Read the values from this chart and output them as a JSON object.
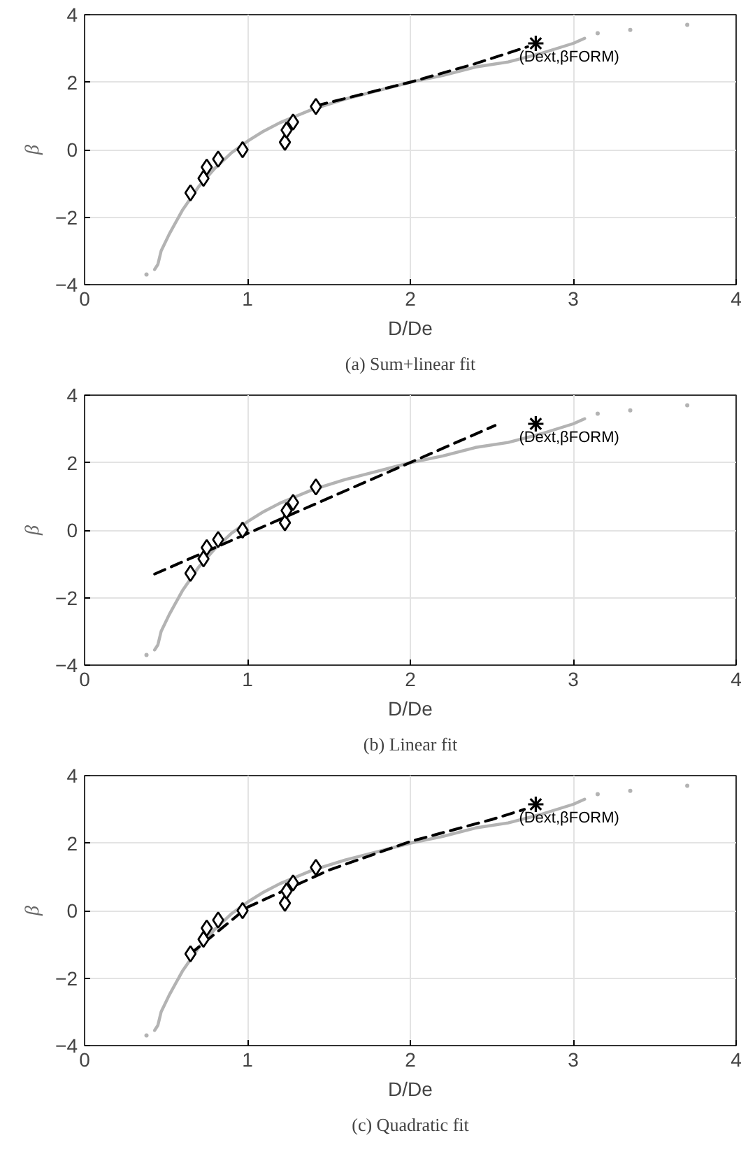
{
  "chart_data": [
    {
      "type": "line",
      "title": "(a) Sum+linear fit",
      "xlabel": "D/De",
      "ylabel": "β",
      "xlim": [
        0,
        4
      ],
      "ylim": [
        -4,
        4
      ],
      "xticks": [
        0,
        1,
        2,
        3,
        4
      ],
      "yticks": [
        -4,
        -2,
        0,
        2,
        4
      ],
      "grid": true,
      "annotations": [
        "(Dext,βFORM)"
      ],
      "series": [
        {
          "color": "#b3b3b3",
          "marker": "none",
          "line_style": "solid",
          "x": [
            0.43,
            0.45,
            0.47,
            0.52,
            0.6,
            0.7,
            0.8,
            0.9,
            1.0,
            1.1,
            1.2,
            1.3,
            1.4,
            1.5,
            1.6,
            1.8,
            2.0,
            2.2,
            2.4,
            2.6,
            2.8,
            2.9,
            3.0,
            3.07
          ],
          "values": [
            -3.55,
            -3.4,
            -3.0,
            -2.5,
            -1.8,
            -1.1,
            -0.55,
            -0.1,
            0.25,
            0.55,
            0.8,
            1.0,
            1.2,
            1.35,
            1.5,
            1.75,
            2.0,
            2.2,
            2.45,
            2.6,
            2.85,
            3.0,
            3.15,
            3.3
          ]
        },
        {
          "type": "scatter",
          "color": "#b3b3b3",
          "marker": "circle",
          "x": [
            0.38,
            3.15,
            3.35,
            3.7
          ],
          "values": [
            -3.7,
            3.45,
            3.55,
            3.7
          ]
        },
        {
          "color": "#000000",
          "marker": "none",
          "line_style": "dashed",
          "x": [
            1.42,
            2.0,
            2.4,
            2.72
          ],
          "values": [
            1.3,
            2.0,
            2.55,
            3.05
          ]
        },
        {
          "type": "scatter",
          "color": "#000000",
          "marker": "diamond",
          "x": [
            0.65,
            0.73,
            0.75,
            0.82,
            0.97,
            1.23,
            1.24,
            1.28,
            1.42
          ],
          "values": [
            -1.28,
            -0.85,
            -0.52,
            -0.28,
            0.0,
            0.22,
            0.58,
            0.82,
            1.28
          ]
        },
        {
          "type": "scatter",
          "color": "#000000",
          "marker": "cross",
          "x": [
            2.77
          ],
          "values": [
            3.15
          ]
        }
      ]
    },
    {
      "type": "line",
      "title": "(b) Linear fit",
      "xlabel": "D/De",
      "ylabel": "β",
      "xlim": [
        0,
        4
      ],
      "ylim": [
        -4,
        4
      ],
      "xticks": [
        0,
        1,
        2,
        3,
        4
      ],
      "yticks": [
        -4,
        -2,
        0,
        2,
        4
      ],
      "grid": true,
      "annotations": [
        "(Dext,βFORM)"
      ],
      "series": [
        {
          "color": "#b3b3b3",
          "marker": "none",
          "line_style": "solid",
          "x": [
            0.43,
            0.45,
            0.47,
            0.52,
            0.6,
            0.7,
            0.8,
            0.9,
            1.0,
            1.1,
            1.2,
            1.3,
            1.4,
            1.5,
            1.6,
            1.8,
            2.0,
            2.2,
            2.4,
            2.6,
            2.8,
            2.9,
            3.0,
            3.07
          ],
          "values": [
            -3.55,
            -3.4,
            -3.0,
            -2.5,
            -1.8,
            -1.1,
            -0.55,
            -0.1,
            0.25,
            0.55,
            0.8,
            1.0,
            1.2,
            1.35,
            1.5,
            1.75,
            2.0,
            2.2,
            2.45,
            2.6,
            2.85,
            3.0,
            3.15,
            3.3
          ]
        },
        {
          "type": "scatter",
          "color": "#b3b3b3",
          "marker": "circle",
          "x": [
            0.38,
            3.15,
            3.35,
            3.7
          ],
          "values": [
            -3.7,
            3.45,
            3.55,
            3.7
          ]
        },
        {
          "color": "#000000",
          "marker": "none",
          "line_style": "dashed",
          "x": [
            0.43,
            2.52
          ],
          "values": [
            -1.3,
            3.1
          ]
        },
        {
          "type": "scatter",
          "color": "#000000",
          "marker": "diamond",
          "x": [
            0.65,
            0.73,
            0.75,
            0.82,
            0.97,
            1.23,
            1.24,
            1.28,
            1.42
          ],
          "values": [
            -1.28,
            -0.85,
            -0.52,
            -0.28,
            0.0,
            0.22,
            0.58,
            0.82,
            1.28
          ]
        },
        {
          "type": "scatter",
          "color": "#000000",
          "marker": "cross",
          "x": [
            2.77
          ],
          "values": [
            3.15
          ]
        }
      ]
    },
    {
      "type": "line",
      "title": "(c) Quadratic fit",
      "xlabel": "D/De",
      "ylabel": "β",
      "xlim": [
        0,
        4
      ],
      "ylim": [
        -4,
        4
      ],
      "xticks": [
        0,
        1,
        2,
        3,
        4
      ],
      "yticks": [
        -4,
        -2,
        0,
        2,
        4
      ],
      "grid": true,
      "annotations": [
        "(Dext,βFORM)"
      ],
      "series": [
        {
          "color": "#b3b3b3",
          "marker": "none",
          "line_style": "solid",
          "x": [
            0.43,
            0.45,
            0.47,
            0.52,
            0.6,
            0.7,
            0.8,
            0.9,
            1.0,
            1.1,
            1.2,
            1.3,
            1.4,
            1.5,
            1.6,
            1.8,
            2.0,
            2.2,
            2.4,
            2.6,
            2.8,
            2.9,
            3.0,
            3.07
          ],
          "values": [
            -3.55,
            -3.4,
            -3.0,
            -2.5,
            -1.8,
            -1.1,
            -0.55,
            -0.1,
            0.25,
            0.55,
            0.8,
            1.0,
            1.2,
            1.35,
            1.5,
            1.75,
            2.0,
            2.2,
            2.45,
            2.6,
            2.85,
            3.0,
            3.15,
            3.3
          ]
        },
        {
          "type": "scatter",
          "color": "#b3b3b3",
          "marker": "circle",
          "x": [
            0.38,
            3.15,
            3.35,
            3.7
          ],
          "values": [
            -3.7,
            3.45,
            3.55,
            3.7
          ]
        },
        {
          "color": "#000000",
          "marker": "none",
          "line_style": "dashed",
          "x": [
            0.65,
            1.0,
            1.5,
            2.0,
            2.5,
            2.7
          ],
          "values": [
            -1.28,
            0.1,
            1.2,
            2.05,
            2.7,
            3.0
          ]
        },
        {
          "type": "scatter",
          "color": "#000000",
          "marker": "diamond",
          "x": [
            0.65,
            0.73,
            0.75,
            0.82,
            0.97,
            1.23,
            1.24,
            1.28,
            1.42
          ],
          "values": [
            -1.28,
            -0.85,
            -0.52,
            -0.28,
            0.0,
            0.22,
            0.58,
            0.82,
            1.28
          ]
        },
        {
          "type": "scatter",
          "color": "#000000",
          "marker": "cross",
          "x": [
            2.77
          ],
          "values": [
            3.15
          ]
        }
      ]
    }
  ]
}
